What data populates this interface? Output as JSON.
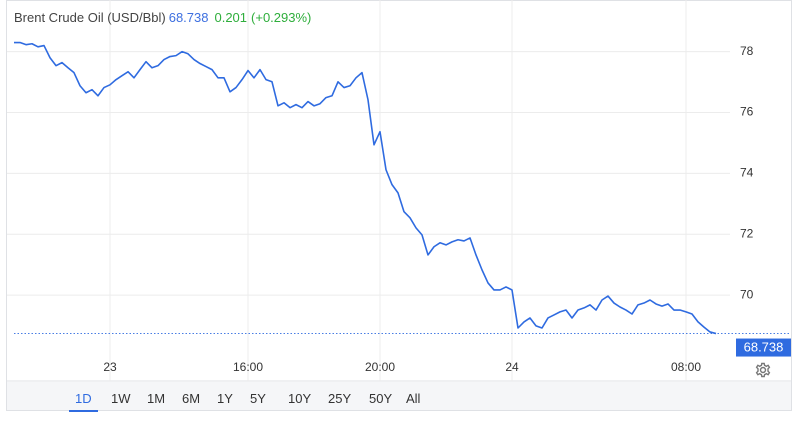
{
  "chart_data": {
    "type": "line",
    "title": "Brent Crude Oil (USD/Bbl)",
    "price": 68.738,
    "change": 0.201,
    "change_pct": "(+0.293%)",
    "color": "#2f6be0",
    "categories": [
      null,
      null,
      null,
      null,
      null,
      null,
      null,
      null,
      null,
      null,
      null,
      null,
      null,
      null,
      null,
      null,
      "23",
      null,
      null,
      null,
      null,
      null,
      null,
      null,
      null,
      null,
      null,
      null,
      null,
      null,
      null,
      null,
      null,
      null,
      null,
      null,
      null,
      null,
      null,
      "16:00",
      null,
      null,
      null,
      null,
      null,
      null,
      null,
      null,
      null,
      null,
      null,
      null,
      null,
      null,
      null,
      null,
      null,
      null,
      null,
      null,
      null,
      "20:00",
      null,
      null,
      null,
      null,
      null,
      null,
      null,
      null,
      null,
      null,
      null,
      null,
      null,
      null,
      null,
      null,
      null,
      null,
      null,
      null,
      null,
      "24",
      null,
      null,
      null,
      null,
      null,
      null,
      null,
      null,
      null,
      null,
      null,
      null,
      null,
      null,
      null,
      null,
      null,
      null,
      null,
      null,
      null,
      null,
      null,
      null,
      null,
      null,
      null,
      null,
      "08:00",
      null,
      null,
      null,
      null,
      null
    ],
    "values": [
      78.3,
      78.3,
      78.23,
      78.26,
      78.16,
      78.2,
      77.8,
      77.54,
      77.64,
      77.47,
      77.31,
      76.88,
      76.65,
      76.75,
      76.55,
      76.82,
      76.91,
      77.08,
      77.21,
      77.34,
      77.14,
      77.41,
      77.67,
      77.47,
      77.54,
      77.74,
      77.84,
      77.87,
      78.0,
      77.93,
      77.74,
      77.61,
      77.51,
      77.41,
      77.14,
      77.14,
      76.68,
      76.82,
      77.08,
      77.38,
      77.14,
      77.41,
      77.08,
      77.01,
      76.22,
      76.32,
      76.16,
      76.26,
      76.16,
      76.36,
      76.22,
      76.29,
      76.49,
      76.55,
      77.01,
      76.82,
      76.88,
      77.14,
      77.31,
      76.42,
      74.94,
      75.37,
      74.12,
      73.63,
      73.36,
      72.74,
      72.54,
      72.21,
      71.98,
      71.32,
      71.59,
      71.72,
      71.65,
      71.75,
      71.82,
      71.78,
      71.88,
      71.32,
      70.83,
      70.4,
      70.17,
      70.17,
      70.27,
      70.17,
      68.92,
      69.12,
      69.25,
      68.99,
      68.92,
      69.25,
      69.35,
      69.45,
      69.51,
      69.25,
      69.51,
      69.58,
      69.68,
      69.51,
      69.84,
      69.97,
      69.74,
      69.61,
      69.51,
      69.38,
      69.68,
      69.74,
      69.84,
      69.71,
      69.64,
      69.71,
      69.51,
      69.51,
      69.45,
      69.38,
      69.12,
      68.95,
      68.79,
      68.738
    ],
    "ylim": [
      68,
      79.5
    ],
    "yticks": [
      70,
      72,
      74,
      76,
      78
    ],
    "grid": true
  },
  "range_buttons": [
    "1D",
    "1W",
    "1M",
    "6M",
    "1Y",
    "5Y",
    "10Y",
    "25Y",
    "50Y",
    "All"
  ]
}
